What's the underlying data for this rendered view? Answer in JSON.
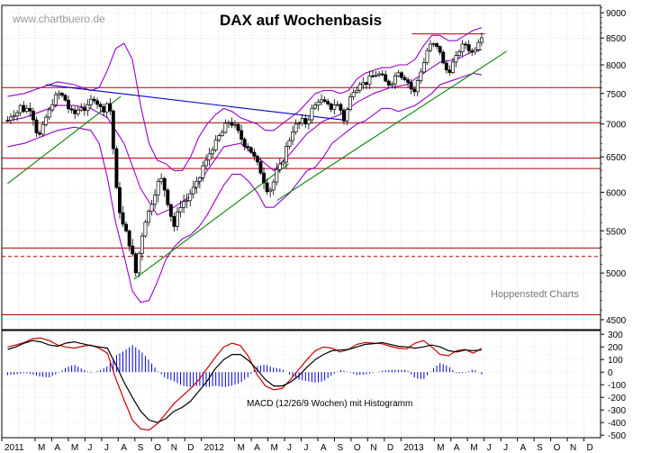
{
  "chart_data": {
    "type": "candlestick",
    "title": "DAX auf Wochenbasis",
    "watermark": "www.chartbuero.de",
    "source": "Hoppenstedt Charts",
    "macd_label": "MACD (12/26/9 Wochen) mit Histogramm",
    "price_axis": {
      "min": 4400,
      "max": 9150,
      "ticks": [
        4500,
        5000,
        5500,
        6000,
        6500,
        7000,
        7500,
        8000,
        8500,
        9000
      ]
    },
    "macd_axis": {
      "min": -520,
      "max": 330,
      "ticks": [
        -500,
        -400,
        -300,
        -200,
        -100,
        0,
        100,
        200,
        300
      ]
    },
    "x_labels": [
      "2011",
      "M",
      "A",
      "M",
      "J",
      "J",
      "A",
      "S",
      "O",
      "N",
      "D",
      "2012",
      "M",
      "A",
      "M",
      "J",
      "J",
      "A",
      "S",
      "O",
      "N",
      "D",
      "2013",
      "M",
      "A",
      "M",
      "J",
      "J",
      "A",
      "S",
      "O",
      "N",
      "D"
    ],
    "label_month_index": [
      0,
      2,
      3,
      4,
      5,
      6,
      7,
      8,
      9,
      10,
      11,
      12,
      14,
      15,
      16,
      17,
      18,
      19,
      20,
      21,
      22,
      23,
      24,
      26,
      27,
      28,
      29,
      30,
      31,
      32,
      33,
      34,
      35
    ],
    "close_path": [
      [
        0,
        7060
      ],
      [
        0.3,
        7180
      ],
      [
        0.5,
        7150
      ],
      [
        0.8,
        7300
      ],
      [
        1.0,
        7210
      ],
      [
        1.3,
        7280
      ],
      [
        1.5,
        7150
      ],
      [
        1.7,
        6900
      ],
      [
        2.0,
        6800
      ],
      [
        2.2,
        7050
      ],
      [
        2.5,
        7200
      ],
      [
        2.7,
        7350
      ],
      [
        3.0,
        7500
      ],
      [
        3.2,
        7480
      ],
      [
        3.5,
        7380
      ],
      [
        3.7,
        7220
      ],
      [
        4.0,
        7150
      ],
      [
        4.3,
        7250
      ],
      [
        4.5,
        7300
      ],
      [
        4.7,
        7200
      ],
      [
        5.0,
        7380
      ],
      [
        5.2,
        7420
      ],
      [
        5.5,
        7300
      ],
      [
        5.7,
        7200
      ],
      [
        6.0,
        7350
      ],
      [
        6.2,
        7180
      ],
      [
        6.5,
        6100
      ],
      [
        6.7,
        5800
      ],
      [
        7.0,
        5500
      ],
      [
        7.2,
        5450
      ],
      [
        7.5,
        5200
      ],
      [
        7.7,
        5000
      ],
      [
        8.0,
        5350
      ],
      [
        8.2,
        5600
      ],
      [
        8.5,
        5750
      ],
      [
        8.7,
        5900
      ],
      [
        9.0,
        6100
      ],
      [
        9.2,
        6200
      ],
      [
        9.5,
        6000
      ],
      [
        9.7,
        5800
      ],
      [
        10.0,
        5550
      ],
      [
        10.2,
        5700
      ],
      [
        10.5,
        5900
      ],
      [
        10.7,
        5850
      ],
      [
        11.0,
        6000
      ],
      [
        11.2,
        6050
      ],
      [
        11.5,
        6150
      ],
      [
        11.7,
        6350
      ],
      [
        12.0,
        6450
      ],
      [
        12.2,
        6600
      ],
      [
        12.5,
        6700
      ],
      [
        12.7,
        6800
      ],
      [
        13.0,
        6900
      ],
      [
        13.2,
        7050
      ],
      [
        13.5,
        7000
      ],
      [
        13.7,
        6950
      ],
      [
        14.0,
        6800
      ],
      [
        14.2,
        6700
      ],
      [
        14.5,
        6650
      ],
      [
        14.7,
        6550
      ],
      [
        15.0,
        6400
      ],
      [
        15.2,
        6300
      ],
      [
        15.5,
        6100
      ],
      [
        15.7,
        6000
      ],
      [
        16.0,
        6150
      ],
      [
        16.2,
        6300
      ],
      [
        16.5,
        6400
      ],
      [
        16.7,
        6600
      ],
      [
        17.0,
        6800
      ],
      [
        17.2,
        6950
      ],
      [
        17.5,
        7000
      ],
      [
        17.7,
        7050
      ],
      [
        18.0,
        7000
      ],
      [
        18.2,
        7200
      ],
      [
        18.5,
        7300
      ],
      [
        18.7,
        7400
      ],
      [
        19.0,
        7350
      ],
      [
        19.2,
        7300
      ],
      [
        19.5,
        7250
      ],
      [
        19.7,
        7350
      ],
      [
        20.0,
        7250
      ],
      [
        20.2,
        7050
      ],
      [
        20.5,
        7300
      ],
      [
        20.7,
        7550
      ],
      [
        21.0,
        7600
      ],
      [
        21.2,
        7700
      ],
      [
        21.5,
        7650
      ],
      [
        21.7,
        7750
      ],
      [
        22.0,
        7800
      ],
      [
        22.2,
        7850
      ],
      [
        22.5,
        7800
      ],
      [
        22.7,
        7700
      ],
      [
        23.0,
        7650
      ],
      [
        23.2,
        7750
      ],
      [
        23.5,
        7900
      ],
      [
        23.7,
        7800
      ],
      [
        24.0,
        7750
      ],
      [
        24.2,
        7600
      ],
      [
        24.5,
        7500
      ],
      [
        24.7,
        7800
      ],
      [
        25.0,
        8000
      ],
      [
        25.2,
        8250
      ],
      [
        25.5,
        8400
      ],
      [
        25.7,
        8350
      ],
      [
        26.0,
        8250
      ],
      [
        26.2,
        8000
      ],
      [
        26.5,
        7850
      ],
      [
        26.7,
        8000
      ],
      [
        27.0,
        8150
      ],
      [
        27.2,
        8300
      ],
      [
        27.5,
        8400
      ],
      [
        27.7,
        8300
      ],
      [
        28.0,
        8200
      ],
      [
        28.2,
        8400
      ],
      [
        28.5,
        8550
      ]
    ],
    "bollinger_upper_path": [
      [
        0,
        7450
      ],
      [
        1,
        7500
      ],
      [
        2,
        7600
      ],
      [
        3,
        7700
      ],
      [
        4,
        7650
      ],
      [
        5,
        7550
      ],
      [
        5.5,
        7600
      ],
      [
        6,
        7900
      ],
      [
        6.5,
        8300
      ],
      [
        7,
        8400
      ],
      [
        7.5,
        8100
      ],
      [
        8,
        7300
      ],
      [
        8.5,
        6700
      ],
      [
        9,
        6450
      ],
      [
        9.5,
        6400
      ],
      [
        10,
        6300
      ],
      [
        10.5,
        6300
      ],
      [
        11,
        6500
      ],
      [
        11.5,
        6800
      ],
      [
        12,
        7000
      ],
      [
        12.5,
        7150
      ],
      [
        13,
        7250
      ],
      [
        13.5,
        7200
      ],
      [
        14,
        7100
      ],
      [
        14.5,
        7050
      ],
      [
        15,
        7000
      ],
      [
        15.5,
        6900
      ],
      [
        16,
        6900
      ],
      [
        16.5,
        7000
      ],
      [
        17,
        7100
      ],
      [
        17.5,
        7200
      ],
      [
        18,
        7350
      ],
      [
        18.5,
        7500
      ],
      [
        19,
        7550
      ],
      [
        19.5,
        7550
      ],
      [
        20,
        7500
      ],
      [
        20.5,
        7550
      ],
      [
        21,
        7750
      ],
      [
        21.5,
        7850
      ],
      [
        22,
        7900
      ],
      [
        22.5,
        7950
      ],
      [
        23,
        7950
      ],
      [
        23.5,
        8000
      ],
      [
        24,
        8000
      ],
      [
        24.5,
        8100
      ],
      [
        25,
        8350
      ],
      [
        25.5,
        8550
      ],
      [
        26,
        8550
      ],
      [
        26.5,
        8450
      ],
      [
        27,
        8450
      ],
      [
        27.5,
        8550
      ],
      [
        28,
        8650
      ],
      [
        28.5,
        8700
      ]
    ],
    "bollinger_lower_path": [
      [
        0,
        6650
      ],
      [
        1,
        6700
      ],
      [
        2,
        6800
      ],
      [
        3,
        6900
      ],
      [
        4,
        6950
      ],
      [
        5,
        6900
      ],
      [
        5.5,
        6700
      ],
      [
        6,
        6200
      ],
      [
        6.5,
        5600
      ],
      [
        7,
        5200
      ],
      [
        7.5,
        4800
      ],
      [
        8,
        4680
      ],
      [
        8.5,
        4700
      ],
      [
        9,
        4900
      ],
      [
        9.5,
        5150
      ],
      [
        10,
        5300
      ],
      [
        10.5,
        5400
      ],
      [
        11,
        5450
      ],
      [
        11.5,
        5550
      ],
      [
        12,
        5700
      ],
      [
        12.5,
        5900
      ],
      [
        13,
        6100
      ],
      [
        13.5,
        6250
      ],
      [
        14,
        6250
      ],
      [
        14.5,
        6150
      ],
      [
        15,
        6000
      ],
      [
        15.5,
        5800
      ],
      [
        16,
        5800
      ],
      [
        16.5,
        5900
      ],
      [
        17,
        6000
      ],
      [
        17.5,
        6150
      ],
      [
        18,
        6300
      ],
      [
        18.5,
        6350
      ],
      [
        19,
        6500
      ],
      [
        19.5,
        6700
      ],
      [
        20,
        6800
      ],
      [
        20.5,
        6900
      ],
      [
        21,
        7000
      ],
      [
        21.5,
        7050
      ],
      [
        22,
        7150
      ],
      [
        22.5,
        7250
      ],
      [
        23,
        7250
      ],
      [
        23.5,
        7200
      ],
      [
        24,
        7250
      ],
      [
        24.5,
        7300
      ],
      [
        25,
        7400
      ],
      [
        25.5,
        7500
      ],
      [
        26,
        7650
      ],
      [
        26.5,
        7700
      ],
      [
        27,
        7750
      ],
      [
        27.5,
        7800
      ],
      [
        28,
        7850
      ],
      [
        28.5,
        7820
      ]
    ],
    "bollinger_mid_path": [
      [
        0,
        7050
      ],
      [
        1,
        7100
      ],
      [
        2,
        7200
      ],
      [
        3,
        7300
      ],
      [
        4,
        7300
      ],
      [
        5,
        7250
      ],
      [
        6,
        7100
      ],
      [
        7,
        6700
      ],
      [
        8,
        6050
      ],
      [
        9,
        5700
      ],
      [
        10,
        5800
      ],
      [
        11,
        5950
      ],
      [
        12,
        6300
      ],
      [
        13,
        6650
      ],
      [
        14,
        6700
      ],
      [
        15,
        6500
      ],
      [
        16,
        6300
      ],
      [
        17,
        6550
      ],
      [
        18,
        6850
      ],
      [
        19,
        7050
      ],
      [
        20,
        7150
      ],
      [
        21,
        7350
      ],
      [
        22,
        7500
      ],
      [
        23,
        7600
      ],
      [
        24,
        7650
      ],
      [
        25,
        7850
      ],
      [
        26,
        8050
      ],
      [
        27,
        8100
      ],
      [
        28,
        8250
      ],
      [
        28.5,
        8280
      ]
    ],
    "horizontal_lines": [
      {
        "value": 8580,
        "style": "solid",
        "color": "#b40000",
        "from": 24.3
      },
      {
        "value": 7600,
        "style": "solid",
        "color": "#b40000"
      },
      {
        "value": 7020,
        "style": "solid",
        "color": "#b40000"
      },
      {
        "value": 6480,
        "style": "solid",
        "color": "#b40000"
      },
      {
        "value": 6330,
        "style": "solid",
        "color": "#b40000"
      },
      {
        "value": 5290,
        "style": "solid",
        "color": "#b40000"
      },
      {
        "value": 5190,
        "style": "dashed",
        "color": "#b40000"
      },
      {
        "value": 4550,
        "style": "solid",
        "color": "#b40000"
      }
    ],
    "trend_lines": [
      {
        "points": [
          [
            2.3,
            7650
          ],
          [
            20.3,
            7060
          ]
        ],
        "color": "#0000cc"
      },
      {
        "points": [
          [
            0,
            6120
          ],
          [
            6.8,
            7450
          ]
        ],
        "color": "#008800"
      },
      {
        "points": [
          [
            7.6,
            4930
          ],
          [
            16.9,
            6400
          ]
        ],
        "color": "#008800"
      },
      {
        "points": [
          [
            16.2,
            5890
          ],
          [
            30.0,
            8250
          ]
        ],
        "color": "#008800"
      }
    ],
    "macd_line_path": [
      [
        0,
        180
      ],
      [
        0.5,
        200
      ],
      [
        1,
        230
      ],
      [
        1.5,
        250
      ],
      [
        2,
        240
      ],
      [
        2.5,
        215
      ],
      [
        3,
        205
      ],
      [
        3.5,
        230
      ],
      [
        4,
        240
      ],
      [
        4.5,
        225
      ],
      [
        5,
        210
      ],
      [
        5.5,
        200
      ],
      [
        6,
        190
      ],
      [
        6.5,
        60
      ],
      [
        7,
        -80
      ],
      [
        7.5,
        -200
      ],
      [
        8,
        -310
      ],
      [
        8.5,
        -380
      ],
      [
        9,
        -400
      ],
      [
        9.5,
        -370
      ],
      [
        10,
        -310
      ],
      [
        10.5,
        -280
      ],
      [
        11,
        -230
      ],
      [
        11.5,
        -150
      ],
      [
        12,
        -70
      ],
      [
        12.5,
        30
      ],
      [
        13,
        100
      ],
      [
        13.5,
        140
      ],
      [
        14,
        140
      ],
      [
        14.5,
        90
      ],
      [
        15,
        20
      ],
      [
        15.5,
        -60
      ],
      [
        16,
        -110
      ],
      [
        16.5,
        -110
      ],
      [
        17,
        -80
      ],
      [
        17.5,
        -30
      ],
      [
        18,
        40
      ],
      [
        18.5,
        100
      ],
      [
        19,
        140
      ],
      [
        19.5,
        170
      ],
      [
        20,
        175
      ],
      [
        20.5,
        180
      ],
      [
        21,
        200
      ],
      [
        21.5,
        220
      ],
      [
        22,
        225
      ],
      [
        22.5,
        235
      ],
      [
        23,
        220
      ],
      [
        23.5,
        205
      ],
      [
        24,
        200
      ],
      [
        24.5,
        190
      ],
      [
        25,
        200
      ],
      [
        25.5,
        215
      ],
      [
        26,
        200
      ],
      [
        26.5,
        170
      ],
      [
        27,
        160
      ],
      [
        27.5,
        175
      ],
      [
        28,
        170
      ],
      [
        28.5,
        175
      ]
    ],
    "macd_signal_path": [
      [
        0,
        200
      ],
      [
        0.5,
        215
      ],
      [
        1,
        235
      ],
      [
        1.5,
        265
      ],
      [
        2,
        270
      ],
      [
        2.5,
        250
      ],
      [
        3,
        215
      ],
      [
        3.5,
        200
      ],
      [
        4,
        190
      ],
      [
        4.5,
        205
      ],
      [
        5,
        215
      ],
      [
        5.5,
        190
      ],
      [
        6,
        150
      ],
      [
        6.5,
        -50
      ],
      [
        7,
        -220
      ],
      [
        7.5,
        -380
      ],
      [
        8,
        -450
      ],
      [
        8.5,
        -460
      ],
      [
        9,
        -410
      ],
      [
        9.5,
        -330
      ],
      [
        10,
        -250
      ],
      [
        10.5,
        -190
      ],
      [
        11,
        -130
      ],
      [
        11.5,
        -60
      ],
      [
        12,
        30
      ],
      [
        12.5,
        120
      ],
      [
        13,
        200
      ],
      [
        13.5,
        230
      ],
      [
        14,
        210
      ],
      [
        14.5,
        120
      ],
      [
        15,
        -20
      ],
      [
        15.5,
        -110
      ],
      [
        16,
        -140
      ],
      [
        16.5,
        -130
      ],
      [
        17,
        -60
      ],
      [
        17.5,
        20
      ],
      [
        18,
        100
      ],
      [
        18.5,
        170
      ],
      [
        19,
        200
      ],
      [
        19.5,
        190
      ],
      [
        20,
        160
      ],
      [
        20.5,
        180
      ],
      [
        21,
        220
      ],
      [
        21.5,
        235
      ],
      [
        22,
        230
      ],
      [
        22.5,
        225
      ],
      [
        23,
        205
      ],
      [
        23.5,
        190
      ],
      [
        24,
        185
      ],
      [
        24.5,
        230
      ],
      [
        25,
        250
      ],
      [
        25.5,
        200
      ],
      [
        26,
        140
      ],
      [
        26.5,
        130
      ],
      [
        27,
        170
      ],
      [
        27.5,
        180
      ],
      [
        28,
        150
      ],
      [
        28.5,
        190
      ]
    ],
    "colors": {
      "candle_outline": "#000000",
      "bollinger": "#9900cc",
      "macd_line": "#000000",
      "macd_signal": "#cc0000",
      "histogram": "#0000cc",
      "resistance": "#b40000"
    }
  }
}
